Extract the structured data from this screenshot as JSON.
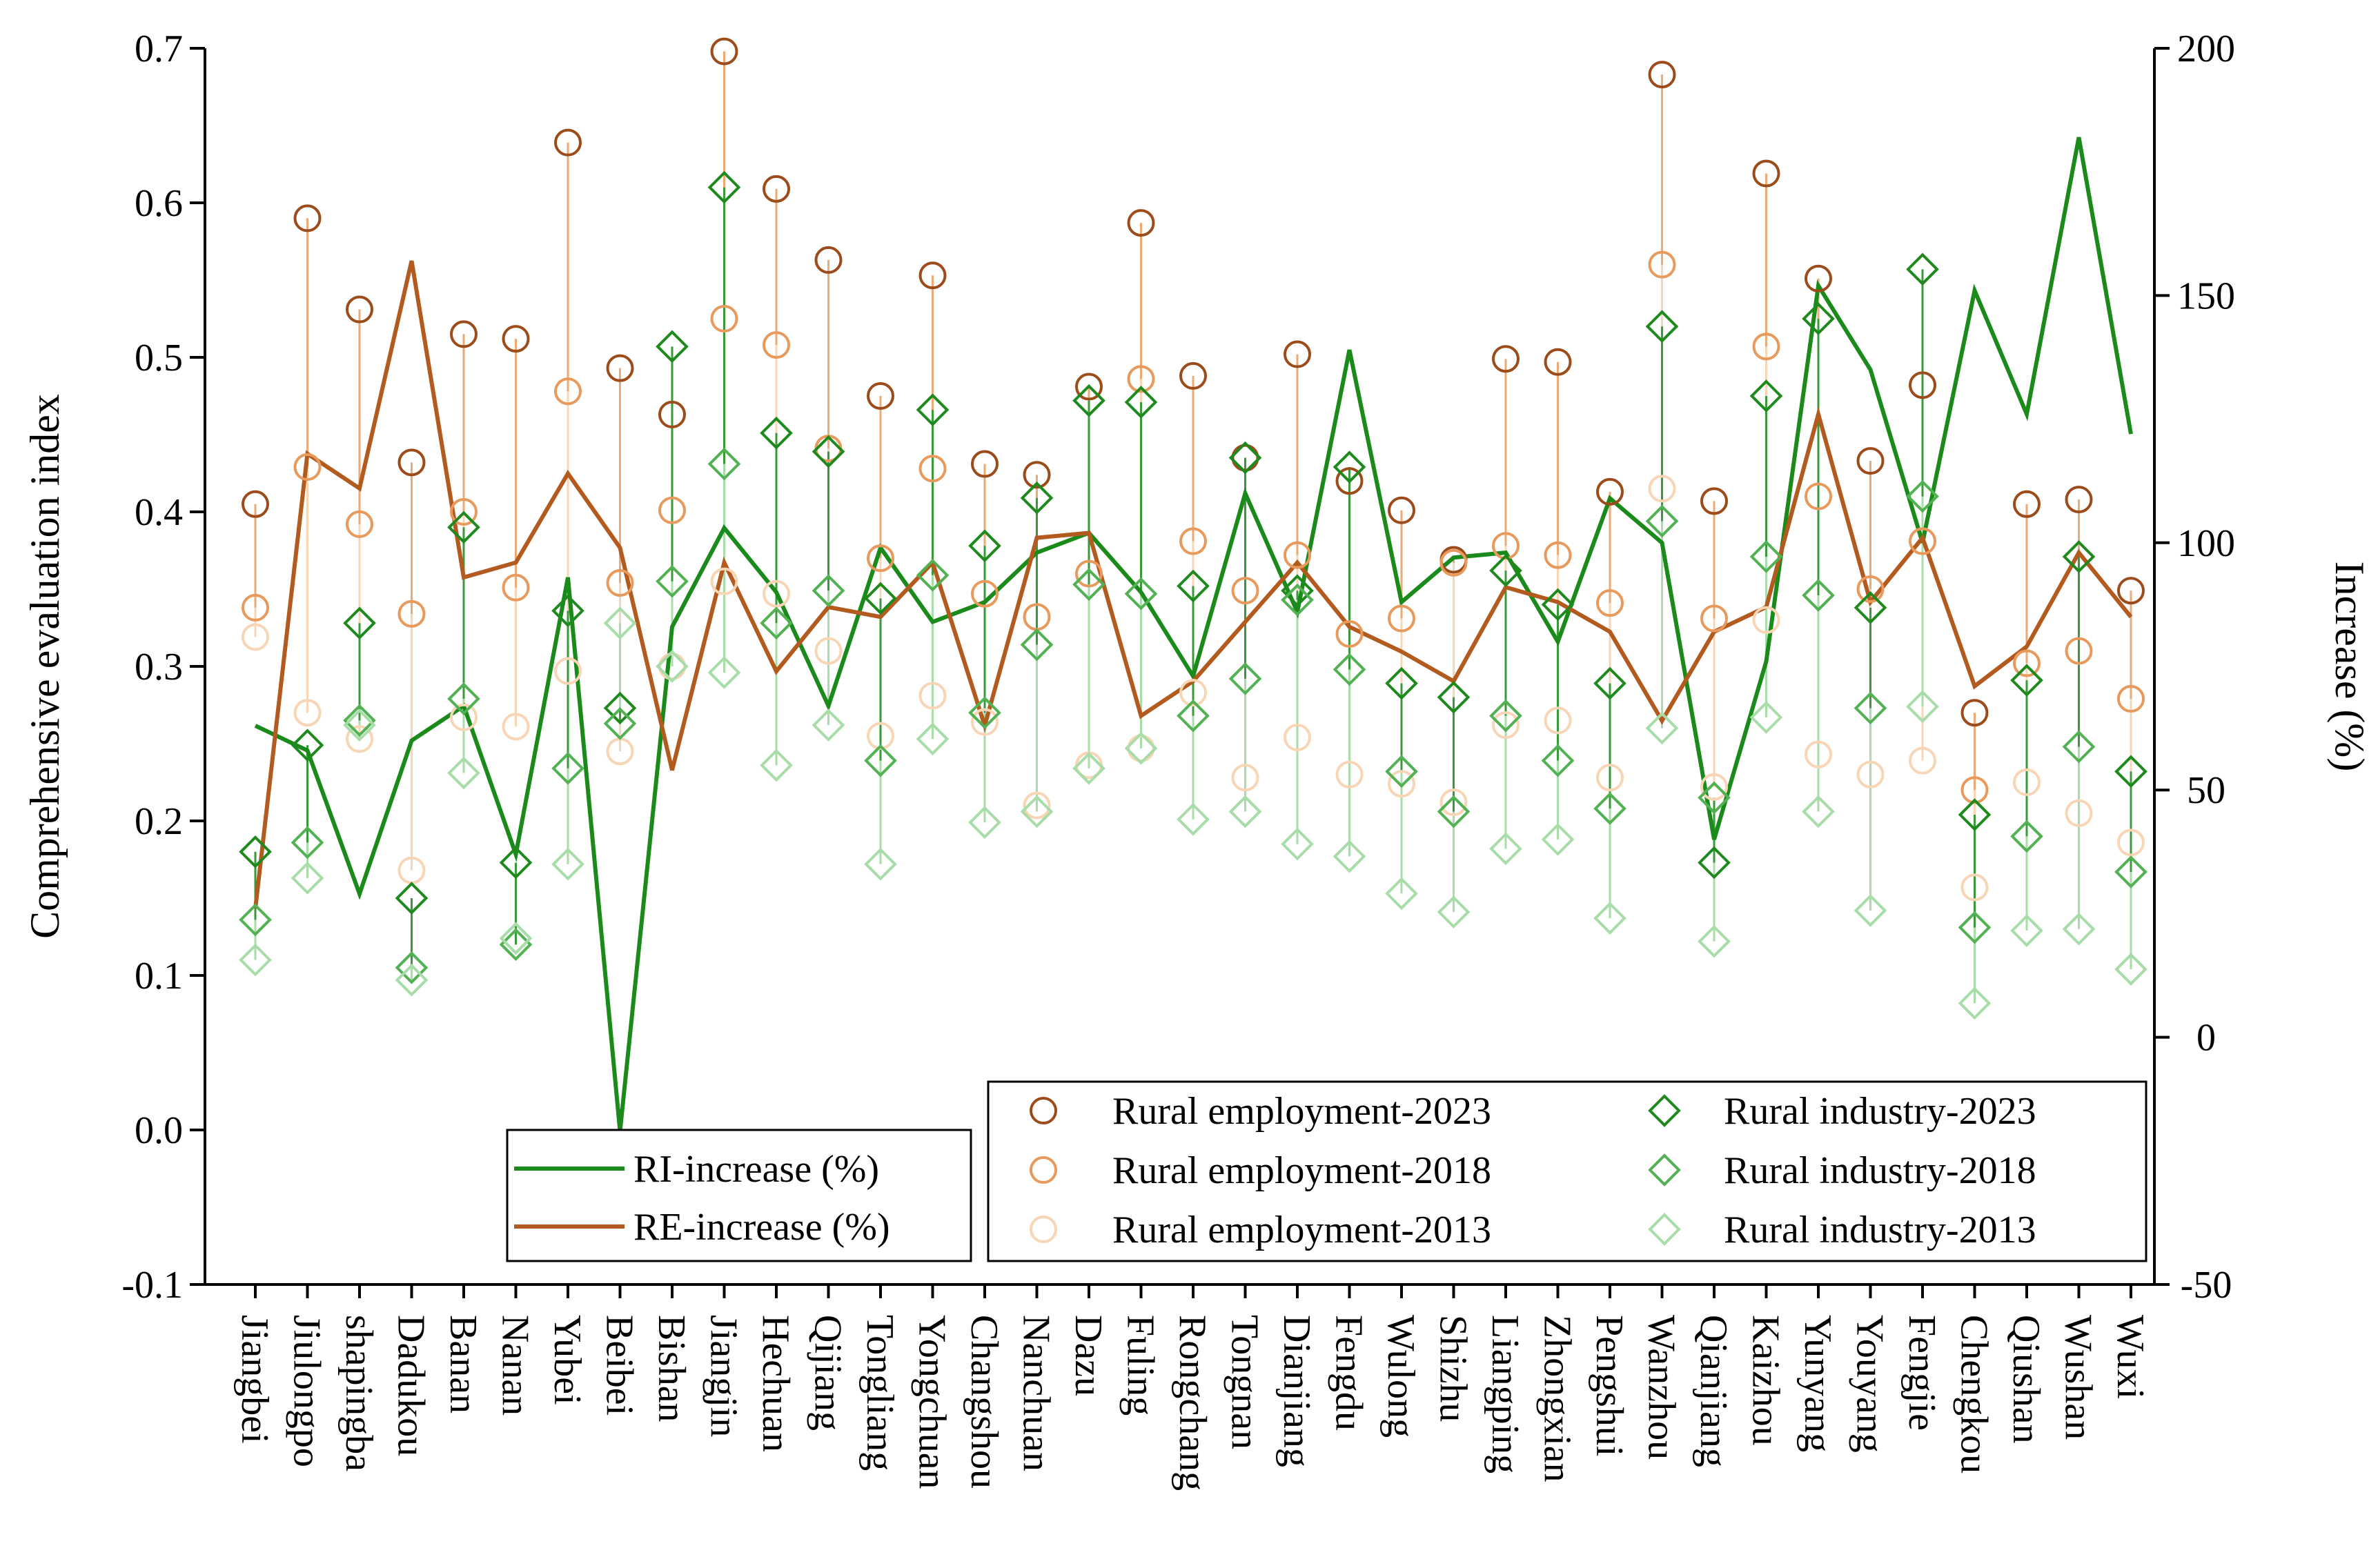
{
  "chart_data": {
    "type": "line",
    "title": "",
    "ylabel": "Comprehensive evaluation index",
    "y2label": "Increase (%)",
    "ylim": [
      -0.1,
      0.7
    ],
    "y2lim": [
      -50,
      200
    ],
    "yticks": [
      "-0.1",
      "0.0",
      "0.1",
      "0.2",
      "0.3",
      "0.4",
      "0.5",
      "0.6",
      "0.7"
    ],
    "y2ticks": [
      "-50",
      "0",
      "50",
      "100",
      "150",
      "200"
    ],
    "categories": [
      "Jiangbei",
      "Jiulongpo",
      "shapingba",
      "Dadukou",
      "Banan",
      "Nanan",
      "Yubei",
      "Beibei",
      "Bishan",
      "Jiangjin",
      "Hechuan",
      "Qijiang",
      "Tongliang",
      "Yongchuan",
      "Changshou",
      "Nanchuan",
      "Dazu",
      "Fuling",
      "Rongchang",
      "Tongnan",
      "Dianjiang",
      "Fengdu",
      "Wulong",
      "Shizhu",
      "Liangping",
      "Zhongxian",
      "Pengshui",
      "Wanzhou",
      "Qianjiang",
      "Kaizhou",
      "Yunyang",
      "Youyang",
      "Fengjie",
      "Chengkou",
      "Qiushan",
      "Wushan",
      "Wuxi"
    ],
    "series": [
      {
        "name": "Rural employment-2023",
        "axis": "left",
        "marker": "circle",
        "color": "#9c4b1a",
        "values": [
          0.405,
          0.59,
          0.531,
          0.432,
          0.515,
          0.512,
          0.639,
          0.493,
          0.463,
          0.698,
          0.609,
          0.563,
          0.475,
          0.553,
          0.431,
          0.424,
          0.481,
          0.587,
          0.488,
          0.435,
          0.502,
          0.42,
          0.401,
          0.369,
          0.499,
          0.497,
          0.413,
          0.683,
          0.407,
          0.619,
          0.551,
          0.433,
          0.482,
          0.27,
          0.405,
          0.408,
          0.349
        ]
      },
      {
        "name": "Rural employment-2018",
        "axis": "left",
        "marker": "circle",
        "color": "#e89a5c",
        "values": [
          0.338,
          0.429,
          0.392,
          0.334,
          0.4,
          0.351,
          0.478,
          0.354,
          0.401,
          0.525,
          0.508,
          0.441,
          0.37,
          0.428,
          0.347,
          0.332,
          0.36,
          0.486,
          0.381,
          0.349,
          0.372,
          0.321,
          0.331,
          0.367,
          0.378,
          0.372,
          0.341,
          0.56,
          0.331,
          0.507,
          0.41,
          0.35,
          0.381,
          0.22,
          0.302,
          0.31,
          0.279
        ]
      },
      {
        "name": "Rural employment-2013",
        "axis": "left",
        "marker": "circle",
        "color": "#f8d5b4",
        "values": [
          0.319,
          0.27,
          0.253,
          0.168,
          0.267,
          0.261,
          0.297,
          0.245,
          0.3,
          0.355,
          0.347,
          0.31,
          0.255,
          0.281,
          0.264,
          0.21,
          0.236,
          0.247,
          0.283,
          0.228,
          0.254,
          0.23,
          0.224,
          0.212,
          0.262,
          0.265,
          0.228,
          0.415,
          0.222,
          0.33,
          0.243,
          0.23,
          0.239,
          0.157,
          0.225,
          0.205,
          0.186
        ]
      },
      {
        "name": "Rural industry-2023",
        "axis": "left",
        "marker": "diamond",
        "color": "#1e8a1e",
        "values": [
          0.18,
          0.249,
          0.328,
          0.15,
          0.39,
          0.173,
          0.336,
          0.273,
          0.507,
          0.61,
          0.451,
          0.439,
          0.344,
          0.466,
          0.378,
          0.409,
          0.472,
          0.471,
          0.352,
          0.435,
          0.349,
          0.429,
          0.289,
          0.28,
          0.362,
          0.34,
          0.289,
          0.52,
          0.173,
          0.475,
          0.525,
          0.338,
          0.557,
          0.204,
          0.291,
          0.371,
          0.232
        ]
      },
      {
        "name": "Rural industry-2018",
        "axis": "left",
        "marker": "diamond",
        "color": "#52b152",
        "values": [
          0.136,
          0.186,
          0.265,
          0.105,
          0.279,
          0.12,
          0.234,
          0.263,
          0.355,
          0.431,
          0.328,
          0.349,
          0.239,
          0.359,
          0.27,
          0.314,
          0.353,
          0.347,
          0.268,
          0.292,
          0.343,
          0.298,
          0.232,
          0.206,
          0.268,
          0.239,
          0.208,
          0.394,
          0.215,
          0.371,
          0.346,
          0.273,
          0.41,
          0.131,
          0.19,
          0.248,
          0.167
        ]
      },
      {
        "name": "Rural industry-2013",
        "axis": "left",
        "marker": "diamond",
        "color": "#a8dca8",
        "values": [
          0.11,
          0.163,
          0.262,
          0.097,
          0.231,
          0.124,
          0.172,
          0.328,
          0.3,
          0.296,
          0.236,
          0.262,
          0.172,
          0.253,
          0.199,
          0.206,
          0.234,
          0.247,
          0.201,
          0.206,
          0.185,
          0.177,
          0.153,
          0.141,
          0.182,
          0.188,
          0.137,
          0.26,
          0.122,
          0.267,
          0.206,
          0.142,
          0.274,
          0.082,
          0.129,
          0.13,
          0.104
        ]
      },
      {
        "name": "RI-increase (%)",
        "axis": "right",
        "marker": "line",
        "color": "#1a8a1a",
        "values": [
          63,
          58,
          29,
          60,
          67,
          37,
          93,
          -19,
          83,
          103,
          90,
          67,
          99,
          84,
          88,
          98,
          102,
          90,
          73,
          110,
          86,
          139,
          88,
          97,
          98,
          80,
          109,
          100,
          40,
          76,
          152,
          135,
          100,
          151,
          126,
          182,
          122
        ]
      },
      {
        "name": "RE-increase (%)",
        "axis": "right",
        "marker": "line",
        "color": "#b35a1f",
        "values": [
          26,
          118,
          111,
          157,
          93,
          96,
          114,
          99,
          54,
          96,
          74,
          87,
          85,
          96,
          63,
          101,
          102,
          65,
          72,
          84,
          96,
          83,
          78,
          72,
          91,
          88,
          82,
          64,
          82,
          87,
          126,
          88,
          101,
          71,
          79,
          98,
          85
        ]
      }
    ],
    "legend_lines": [
      "RI-increase (%)",
      "RE-increase (%)"
    ],
    "legend_markers": [
      "Rural employment-2023",
      "Rural industry-2023",
      "Rural employment-2018",
      "Rural industry-2018",
      "Rural employment-2013",
      "Rural industry-2013"
    ]
  }
}
